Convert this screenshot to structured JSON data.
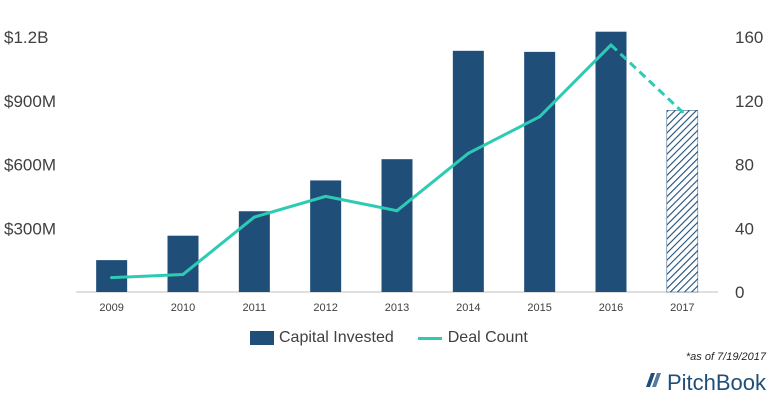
{
  "chart_data": {
    "type": "bar",
    "categories": [
      "2009",
      "2010",
      "2011",
      "2012",
      "2013",
      "2014",
      "2015",
      "2016",
      "2017"
    ],
    "series": [
      {
        "name": "Capital Invested",
        "kind": "bar",
        "axis": "left",
        "values": [
          150,
          265,
          380,
          525,
          625,
          1135,
          1130,
          1225,
          855
        ],
        "unit": "USD millions",
        "color": "#1f4e79",
        "partial_last": true
      },
      {
        "name": "Deal Count",
        "kind": "line",
        "axis": "right",
        "values": [
          9,
          11,
          47,
          60,
          51,
          87,
          110,
          155,
          113
        ],
        "color": "#2ecbb4",
        "dashed_last_segment": true
      }
    ],
    "left_axis": {
      "ticks": [
        "$300M",
        "$600M",
        "$900M",
        "$1.2B"
      ],
      "tick_values": [
        300,
        600,
        900,
        1200
      ],
      "ylim": [
        0,
        1200
      ]
    },
    "right_axis": {
      "ticks": [
        "0",
        "40",
        "80",
        "120",
        "160"
      ],
      "tick_values": [
        0,
        40,
        80,
        120,
        160
      ],
      "ylim": [
        0,
        160
      ]
    },
    "title": "",
    "xlabel": "",
    "ylabel": "",
    "grid": false,
    "legend_position": "bottom"
  },
  "legend": {
    "items": [
      {
        "label": "Capital Invested",
        "color": "#1f4e79"
      },
      {
        "label": "Deal Count",
        "color": "#2ecbb4"
      }
    ]
  },
  "note": "*as of 7/19/2017",
  "brand": "PitchBook"
}
